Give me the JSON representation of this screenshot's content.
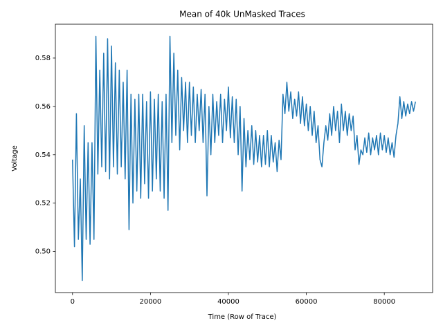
{
  "chart_data": {
    "type": "line",
    "title": "Mean of 40k UnMasked Traces",
    "x_label": "Time (Row of Trace)",
    "y_label": "Voltage",
    "xlim": [
      -4400,
      92400
    ],
    "ylim": [
      0.483,
      0.594
    ],
    "xticks": [
      0,
      20000,
      40000,
      60000,
      80000
    ],
    "yticks": [
      {
        "value": 0.5,
        "label": "0.50"
      },
      0.52,
      0.54,
      0.56,
      0.58
    ],
    "grid": false,
    "series": [
      {
        "color": "#1f77b4",
        "x": [
          0,
          500,
          1000,
          1500,
          2000,
          2500,
          3000,
          3500,
          4000,
          4500,
          5000,
          5500,
          6000,
          6500,
          7000,
          7500,
          8000,
          8500,
          9000,
          9500,
          10000,
          10500,
          11000,
          11500,
          12000,
          12500,
          13000,
          13500,
          14000,
          14500,
          15000,
          15500,
          16000,
          16500,
          17000,
          17500,
          18000,
          18500,
          19000,
          19500,
          20000,
          20500,
          21000,
          21500,
          22000,
          22500,
          23000,
          23500,
          24000,
          24500,
          25000,
          25500,
          26000,
          26500,
          27000,
          27500,
          28000,
          28500,
          29000,
          29500,
          30000,
          30500,
          31000,
          31500,
          32000,
          32500,
          33000,
          33500,
          34000,
          34500,
          35000,
          35500,
          36000,
          36500,
          37000,
          37500,
          38000,
          38500,
          39000,
          39500,
          40000,
          40500,
          41000,
          41500,
          42000,
          42500,
          43000,
          43500,
          44000,
          44500,
          45000,
          45500,
          46000,
          46500,
          47000,
          47500,
          48000,
          48500,
          49000,
          49500,
          50000,
          50500,
          51000,
          51500,
          52000,
          52500,
          53000,
          53500,
          54000,
          54500,
          55000,
          55500,
          56000,
          56500,
          57000,
          57500,
          58000,
          58500,
          59000,
          59500,
          60000,
          60500,
          61000,
          61500,
          62000,
          62500,
          63000,
          63500,
          64000,
          64500,
          65000,
          65500,
          66000,
          66500,
          67000,
          67500,
          68000,
          68500,
          69000,
          69500,
          70000,
          70500,
          71000,
          71500,
          72000,
          72500,
          73000,
          73500,
          74000,
          74500,
          75000,
          75500,
          76000,
          76500,
          77000,
          77500,
          78000,
          78500,
          79000,
          79500,
          80000,
          80500,
          81000,
          81500,
          82000,
          82500,
          83000,
          83500,
          84000,
          84500,
          85000,
          85500,
          86000,
          86500,
          87000,
          87500,
          88000
        ],
        "values": [
          0.538,
          0.502,
          0.557,
          0.505,
          0.53,
          0.488,
          0.552,
          0.505,
          0.545,
          0.503,
          0.545,
          0.505,
          0.589,
          0.532,
          0.575,
          0.535,
          0.582,
          0.533,
          0.588,
          0.53,
          0.585,
          0.535,
          0.578,
          0.532,
          0.575,
          0.535,
          0.57,
          0.53,
          0.575,
          0.509,
          0.565,
          0.52,
          0.563,
          0.525,
          0.565,
          0.522,
          0.565,
          0.528,
          0.562,
          0.522,
          0.566,
          0.525,
          0.563,
          0.53,
          0.565,
          0.525,
          0.562,
          0.522,
          0.565,
          0.517,
          0.589,
          0.545,
          0.582,
          0.548,
          0.575,
          0.542,
          0.572,
          0.55,
          0.57,
          0.545,
          0.57,
          0.548,
          0.568,
          0.545,
          0.565,
          0.55,
          0.567,
          0.545,
          0.565,
          0.523,
          0.56,
          0.54,
          0.565,
          0.545,
          0.562,
          0.548,
          0.565,
          0.545,
          0.563,
          0.55,
          0.568,
          0.547,
          0.564,
          0.545,
          0.563,
          0.54,
          0.56,
          0.525,
          0.555,
          0.535,
          0.55,
          0.538,
          0.552,
          0.536,
          0.55,
          0.537,
          0.548,
          0.535,
          0.548,
          0.536,
          0.55,
          0.535,
          0.548,
          0.537,
          0.545,
          0.533,
          0.546,
          0.538,
          0.565,
          0.557,
          0.57,
          0.558,
          0.566,
          0.555,
          0.563,
          0.556,
          0.566,
          0.553,
          0.564,
          0.552,
          0.561,
          0.55,
          0.56,
          0.548,
          0.558,
          0.545,
          0.552,
          0.538,
          0.535,
          0.545,
          0.552,
          0.546,
          0.557,
          0.548,
          0.56,
          0.55,
          0.558,
          0.545,
          0.561,
          0.55,
          0.558,
          0.548,
          0.557,
          0.55,
          0.556,
          0.542,
          0.548,
          0.536,
          0.542,
          0.54,
          0.547,
          0.541,
          0.549,
          0.54,
          0.547,
          0.542,
          0.548,
          0.54,
          0.549,
          0.542,
          0.548,
          0.541,
          0.547,
          0.54,
          0.545,
          0.539,
          0.548,
          0.553,
          0.564,
          0.555,
          0.562,
          0.556,
          0.561,
          0.557,
          0.562,
          0.558,
          0.562
        ]
      }
    ]
  }
}
